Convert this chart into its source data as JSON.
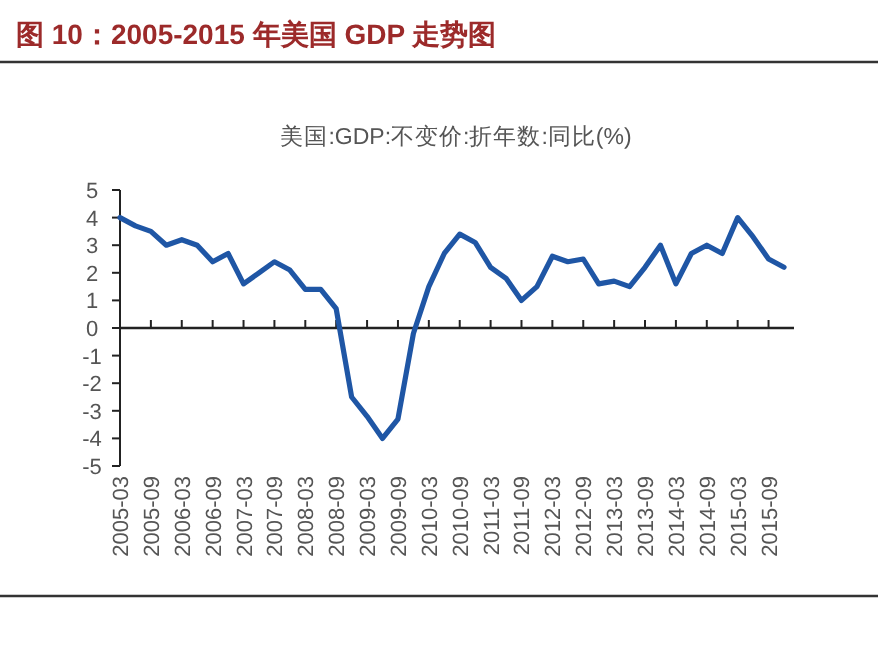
{
  "chart_data": {
    "type": "line",
    "title": "图 10：2005-2015 年美国 GDP 走势图",
    "subtitle": "美国:GDP:不变价:折年数:同比(%)",
    "categories": [
      "2005-03",
      null,
      "2005-09",
      null,
      "2006-03",
      null,
      "2006-09",
      null,
      "2007-03",
      null,
      "2007-09",
      null,
      "2008-03",
      null,
      "2008-09",
      null,
      "2009-03",
      null,
      "2009-09",
      null,
      "2010-03",
      null,
      "2010-09",
      null,
      "2011-03",
      null,
      "2011-09",
      null,
      "2012-03",
      null,
      "2012-09",
      null,
      "2013-03",
      null,
      "2013-09",
      null,
      "2014-03",
      null,
      "2014-09",
      null,
      "2015-03",
      null,
      "2015-09",
      null
    ],
    "series": [
      {
        "color": "#1f56a5",
        "values": [
          4.0,
          3.7,
          3.5,
          3.0,
          3.2,
          3.0,
          2.4,
          2.7,
          1.6,
          2.0,
          2.4,
          2.1,
          1.4,
          1.4,
          0.7,
          -2.5,
          -3.2,
          -4.0,
          -3.3,
          -0.2,
          1.5,
          2.7,
          3.4,
          3.1,
          2.2,
          1.8,
          1.0,
          1.5,
          2.6,
          2.4,
          2.5,
          1.6,
          1.7,
          1.5,
          2.2,
          3.0,
          1.6,
          2.7,
          3.0,
          2.7,
          4.0,
          3.3,
          2.5,
          2.2
        ]
      }
    ],
    "ylim": [
      -5,
      5
    ],
    "yticks": [
      -5,
      -4,
      -3,
      -2,
      -1,
      0,
      1,
      2,
      3,
      4,
      5
    ]
  }
}
